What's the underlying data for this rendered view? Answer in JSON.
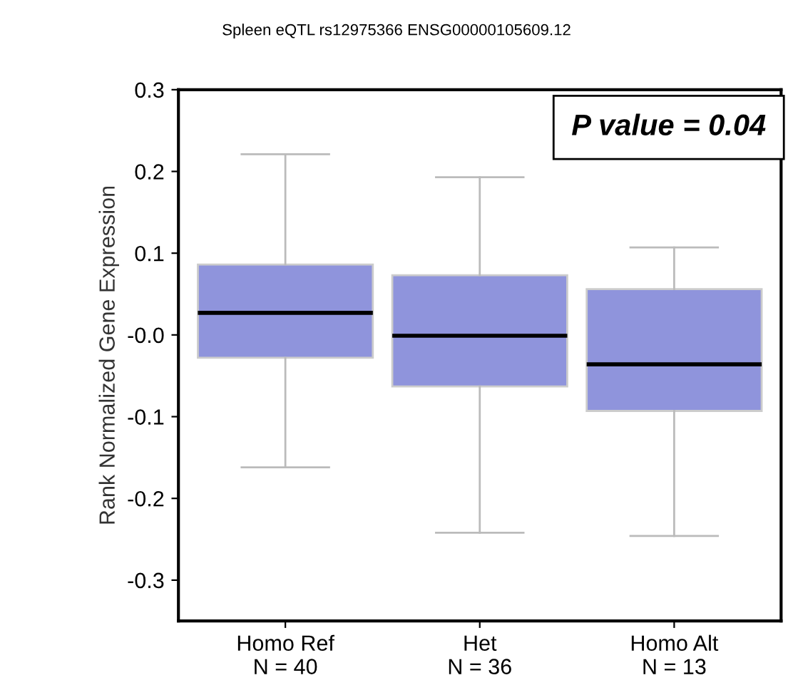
{
  "chart_data": {
    "type": "box",
    "title": "Spleen eQTL rs12975366 ENSG00000105609.12",
    "ylabel": "Rank Normalized Gene Expression",
    "categories": [
      "Homo Ref\nN = 40",
      "Het\nN = 36",
      "Homo Alt\nN = 13"
    ],
    "color": "#8f94dc",
    "boxes": [
      {
        "low": -0.162,
        "q1": -0.028,
        "median": 0.027,
        "q3": 0.086,
        "high": 0.221
      },
      {
        "low": -0.242,
        "q1": -0.063,
        "median": -0.001,
        "q3": 0.073,
        "high": 0.193
      },
      {
        "low": -0.246,
        "q1": -0.093,
        "median": -0.036,
        "q3": 0.056,
        "high": 0.107
      }
    ],
    "ylim": [
      -0.35,
      0.3
    ],
    "yticks": [
      0.3,
      0.2,
      0.1,
      {
        "value": 0,
        "label": "-0.0"
      },
      -0.1,
      -0.2,
      -0.3
    ],
    "annotations": [
      "P value = 0.04"
    ],
    "grid": false,
    "legend": false
  }
}
